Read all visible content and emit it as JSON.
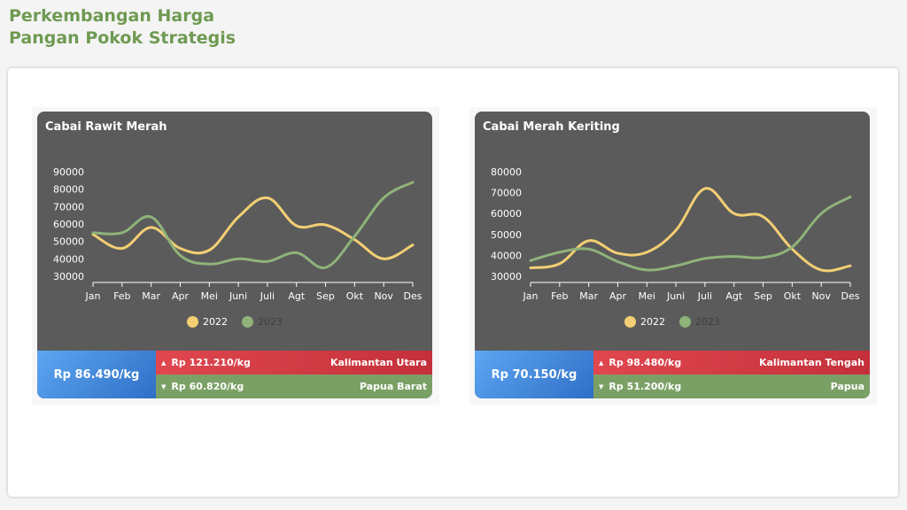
{
  "header": {
    "title_line1": "Perkembangan Harga",
    "title_line2": "Pangan Pokok Strategis"
  },
  "colors": {
    "series_2022": "#f3cf74",
    "series_2023": "#8fb37a",
    "card_bg": "#5b5b5b",
    "high_row": "#d43b44",
    "low_row": "#7ba066",
    "price_box": "#4a8de0"
  },
  "cards": [
    {
      "title": "Cabai Rawit Merah",
      "current_price": "Rp 86.490/kg",
      "highest": {
        "price": "Rp 121.210/kg",
        "region": "Kalimantan Utara"
      },
      "lowest": {
        "price": "Rp 60.820/kg",
        "region": "Papua Barat"
      },
      "legend": [
        "2022",
        "2023"
      ]
    },
    {
      "title": "Cabai Merah Keriting",
      "current_price": "Rp 70.150/kg",
      "highest": {
        "price": "Rp 98.480/kg",
        "region": "Kalimantan Tengah"
      },
      "lowest": {
        "price": "Rp 51.200/kg",
        "region": "Papua"
      },
      "legend": [
        "2022",
        "2023"
      ]
    }
  ],
  "chart_data": [
    {
      "type": "line",
      "title": "Cabai Rawit Merah",
      "categories": [
        "Jan",
        "Feb",
        "Mar",
        "Apr",
        "Mei",
        "Juni",
        "Juli",
        "Agt",
        "Sep",
        "Okt",
        "Nov",
        "Des"
      ],
      "yticks": [
        30000,
        40000,
        50000,
        60000,
        70000,
        80000,
        90000
      ],
      "ylim": [
        30000,
        90000
      ],
      "legend_position": "bottom",
      "grid": false,
      "series": [
        {
          "name": "2022",
          "values": [
            54000,
            46000,
            58000,
            46000,
            45000,
            64000,
            75000,
            59000,
            59500,
            51000,
            40000,
            48000
          ]
        },
        {
          "name": "2023",
          "values": [
            55000,
            55000,
            64000,
            42000,
            37000,
            40000,
            38500,
            43500,
            35000,
            53000,
            75000,
            84000
          ]
        }
      ]
    },
    {
      "type": "line",
      "title": "Cabai Merah Keriting",
      "categories": [
        "Jan",
        "Feb",
        "Mar",
        "Apr",
        "Mei",
        "Juni",
        "Juli",
        "Agt",
        "Sep",
        "Okt",
        "Nov",
        "Des"
      ],
      "yticks": [
        30000,
        40000,
        50000,
        60000,
        70000,
        80000
      ],
      "ylim": [
        30000,
        80000
      ],
      "legend_position": "bottom",
      "grid": false,
      "series": [
        {
          "name": "2022",
          "values": [
            34000,
            36000,
            47000,
            41000,
            41500,
            52000,
            72000,
            60000,
            58500,
            43000,
            33000,
            35000
          ]
        },
        {
          "name": "2023",
          "values": [
            37500,
            41500,
            43000,
            37000,
            33000,
            35000,
            38500,
            39500,
            39000,
            44000,
            60000,
            68000
          ]
        }
      ]
    }
  ]
}
